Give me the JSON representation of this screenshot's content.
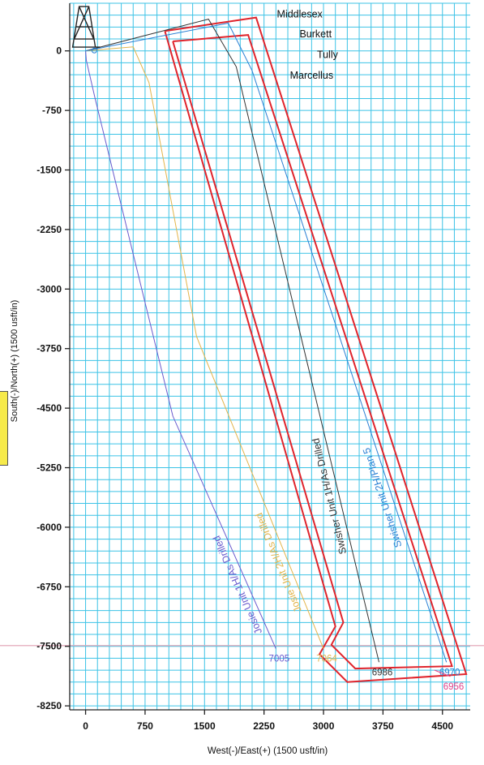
{
  "chart_data": {
    "type": "line",
    "xlabel": "West(-)/East(+) (1500 usft/in)",
    "ylabel": "South(-)/North(+) (1500 usft/in)",
    "xlim": [
      -200,
      4850
    ],
    "ylim": [
      -8300,
      600
    ],
    "x_ticks": [
      0,
      750,
      1500,
      2250,
      3000,
      3750,
      4500
    ],
    "y_ticks": [
      0,
      -750,
      -1500,
      -2250,
      -3000,
      -3750,
      -4500,
      -5250,
      -6000,
      -6750,
      -7500,
      -8250
    ],
    "grid": true,
    "grid_color": "#3cc3e6",
    "formations": [
      "Middlesex",
      "Burkett",
      "Tully",
      "Marcellus"
    ],
    "series": [
      {
        "name": "Josie Unit 1H/As Drilled",
        "color": "#6a5acd",
        "end_label": "7005",
        "x": [
          0,
          10,
          120,
          1100,
          2400
        ],
        "y": [
          0,
          -120,
          -600,
          -4600,
          -7530
        ]
      },
      {
        "name": "Josie Unit 2H/As Drilled",
        "color": "#e3b44a",
        "end_label": "7064",
        "x": [
          0,
          600,
          800,
          1400,
          3000
        ],
        "y": [
          0,
          50,
          -400,
          -3600,
          -7530
        ]
      },
      {
        "name": "Swisher Unit 1H/As Drilled",
        "color": "#333333",
        "end_label": "6986",
        "x": [
          0,
          1550,
          1900,
          3700
        ],
        "y": [
          0,
          400,
          -200,
          -7700
        ]
      },
      {
        "name": "Swisher Unit 2H/Plan 5",
        "color": "#2a7fd4",
        "end_label": "6970",
        "x": [
          0,
          1800,
          2100,
          4550
        ],
        "y": [
          0,
          350,
          -250,
          -7700
        ]
      },
      {
        "name": "",
        "color": "#e0448c",
        "end_label": "6956",
        "x": [
          4400,
          4600
        ],
        "y": [
          -7800,
          -7880
        ]
      }
    ]
  }
}
